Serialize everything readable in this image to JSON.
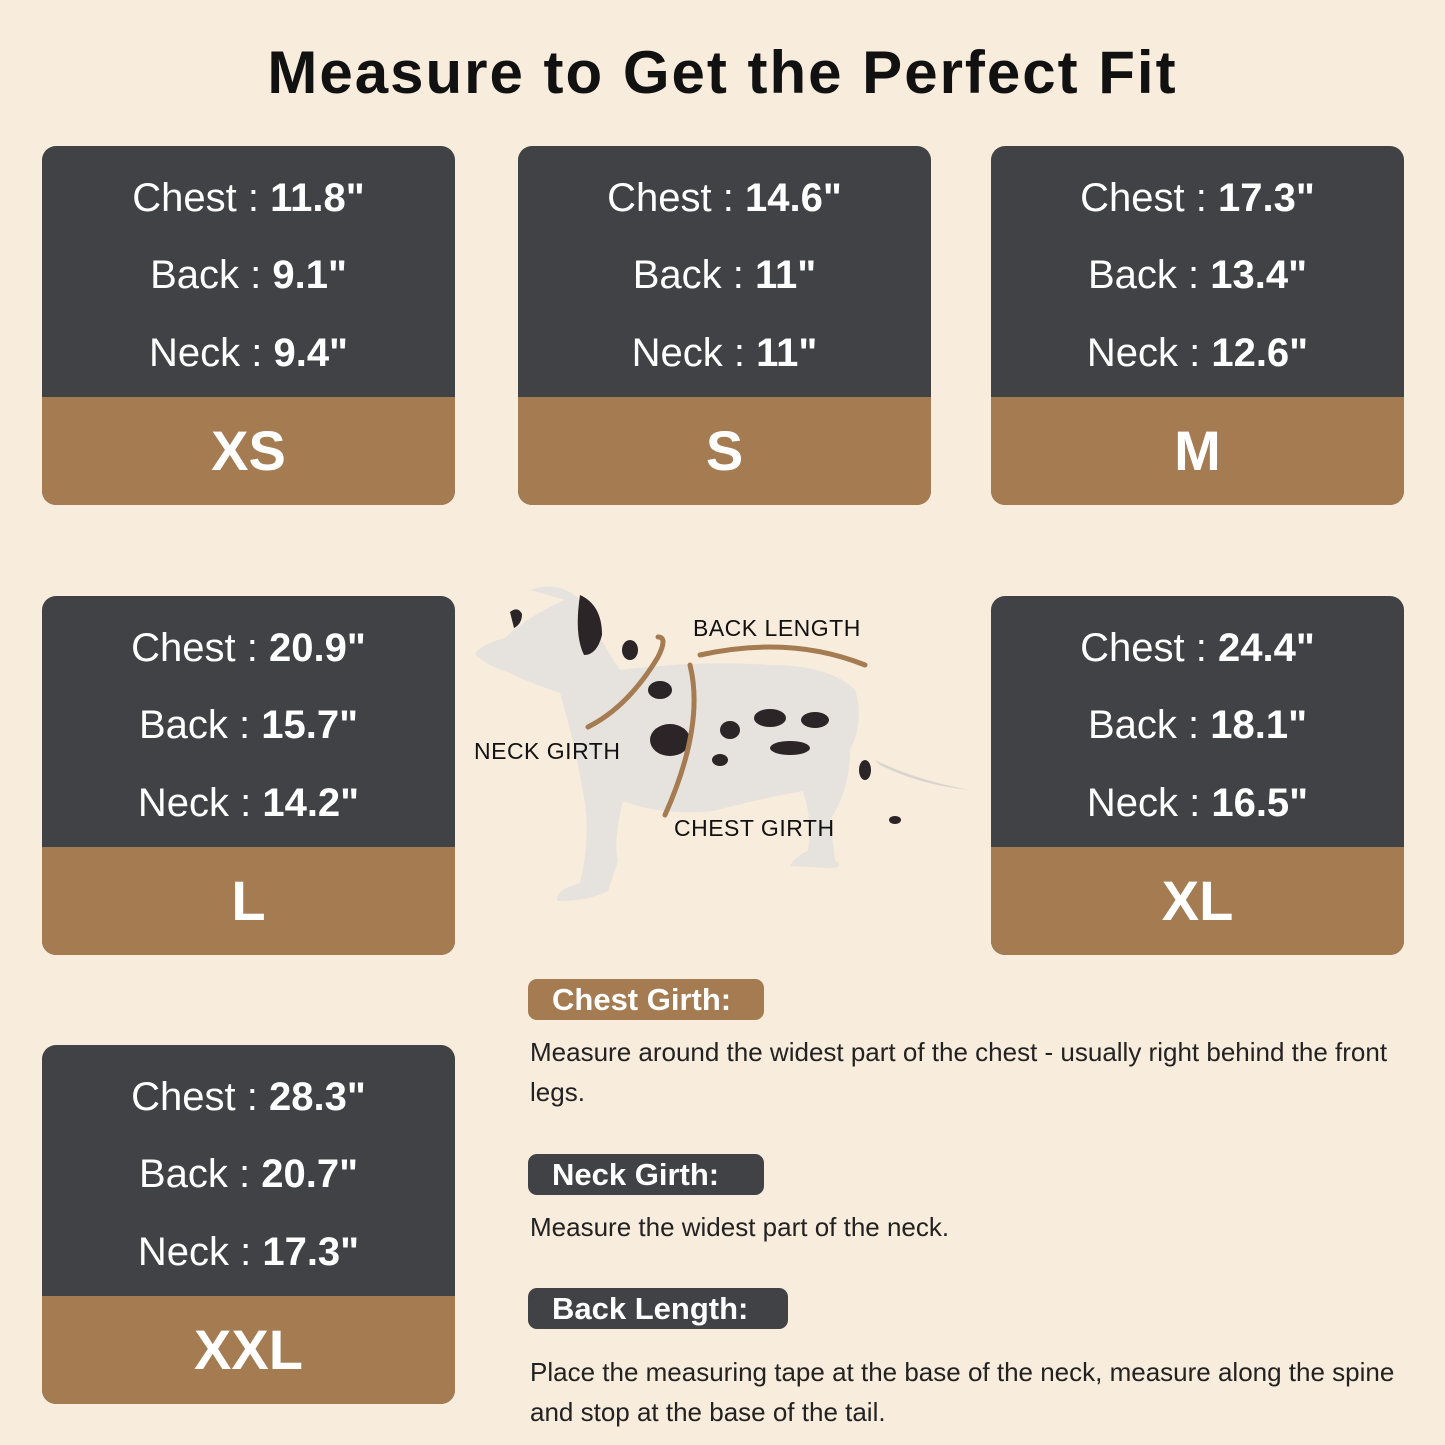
{
  "title": "Measure to Get the Perfect Fit",
  "colors": {
    "background": "#f8ecdc",
    "card_dark": "#414246",
    "accent_brown": "#a57b51"
  },
  "sizes": [
    {
      "size": "XS",
      "chest_label": "Chest : ",
      "chest": "11.8\"",
      "back_label": "Back : ",
      "back": "9.1\"",
      "neck_label": "Neck : ",
      "neck": "9.4\""
    },
    {
      "size": "S",
      "chest_label": "Chest : ",
      "chest": "14.6\"",
      "back_label": "Back : ",
      "back": "11\"",
      "neck_label": "Neck : ",
      "neck": "11\""
    },
    {
      "size": "M",
      "chest_label": "Chest : ",
      "chest": "17.3\"",
      "back_label": "Back : ",
      "back": "13.4\"",
      "neck_label": "Neck : ",
      "neck": "12.6\""
    },
    {
      "size": "L",
      "chest_label": "Chest : ",
      "chest": "20.9\"",
      "back_label": "Back : ",
      "back": "15.7\"",
      "neck_label": "Neck : ",
      "neck": "14.2\""
    },
    {
      "size": "XL",
      "chest_label": "Chest : ",
      "chest": "24.4\"",
      "back_label": "Back : ",
      "back": "18.1\"",
      "neck_label": "Neck : ",
      "neck": "16.5\""
    },
    {
      "size": "XXL",
      "chest_label": "Chest : ",
      "chest": "28.3\"",
      "back_label": "Back : ",
      "back": "20.7\"",
      "neck_label": "Neck : ",
      "neck": "17.3\""
    }
  ],
  "diagram": {
    "back_length": "BACK LENGTH",
    "neck_girth": "NECK GIRTH",
    "chest_girth": "CHEST GIRTH"
  },
  "instructions": [
    {
      "heading": "Chest Girth:",
      "text": "Measure around the widest part of the chest - usually right behind the front legs."
    },
    {
      "heading": "Neck Girth:",
      "text": "Measure the widest part of the neck."
    },
    {
      "heading": "Back Length:",
      "text": "Place the measuring tape at the base of the neck, measure along the spine and stop at the base of the tail."
    }
  ]
}
